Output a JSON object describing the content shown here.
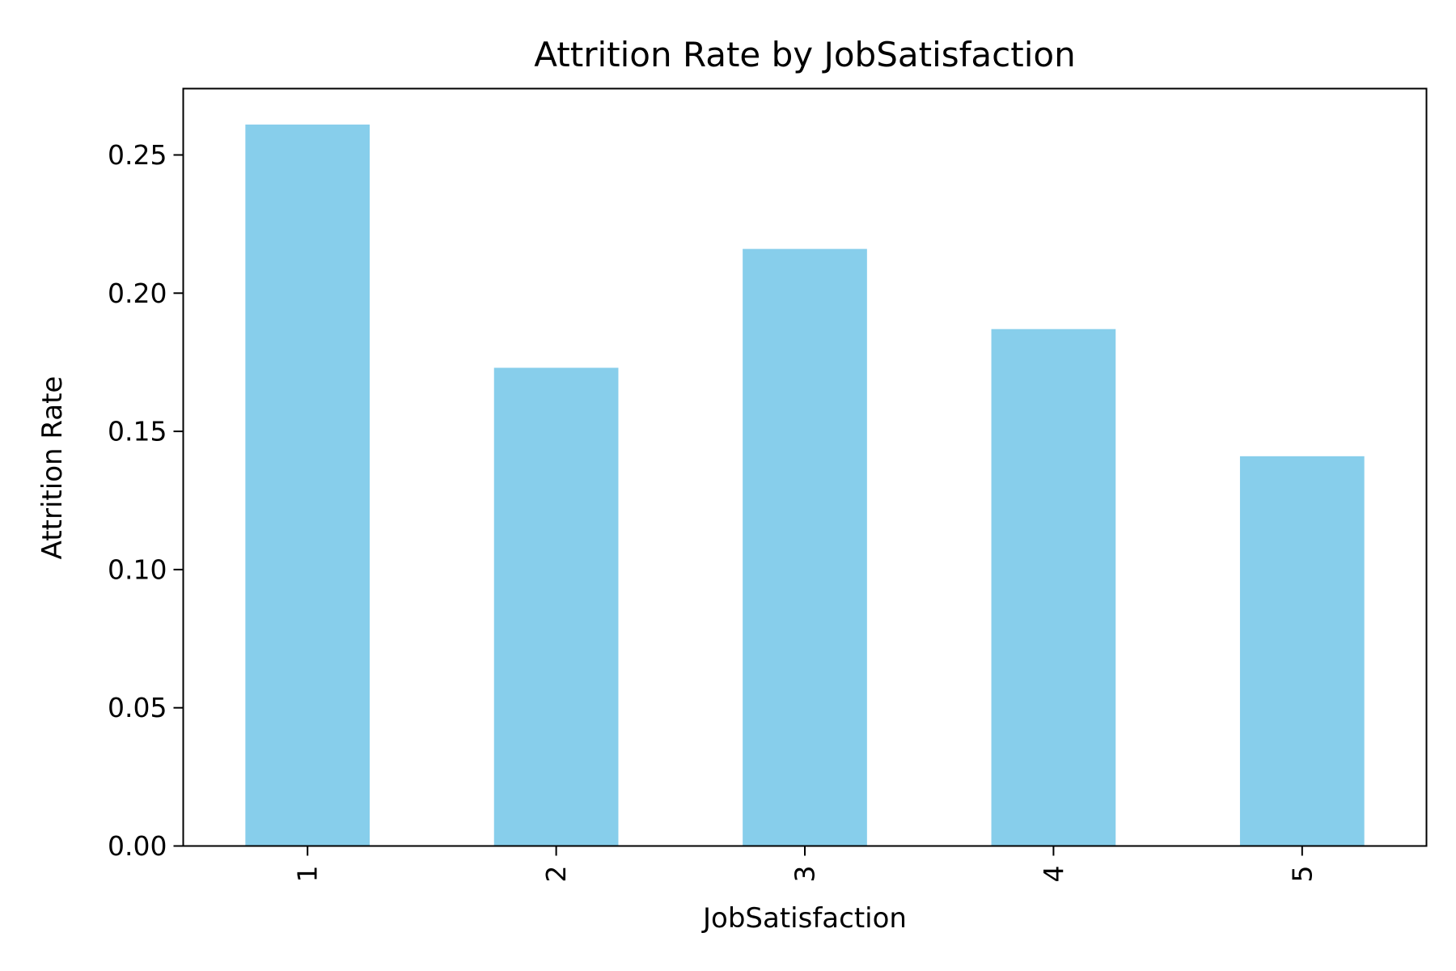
{
  "chart_data": {
    "type": "bar",
    "title": "Attrition Rate by JobSatisfaction",
    "xlabel": "JobSatisfaction",
    "ylabel": "Attrition Rate",
    "categories": [
      "1",
      "2",
      "3",
      "4",
      "5"
    ],
    "values": [
      0.261,
      0.173,
      0.216,
      0.187,
      0.141
    ],
    "ylim": [
      0,
      0.274
    ],
    "yticks": [
      "0.00",
      "0.05",
      "0.10",
      "0.15",
      "0.20",
      "0.25"
    ],
    "grid": false,
    "bar_color": "#87CEEB"
  }
}
